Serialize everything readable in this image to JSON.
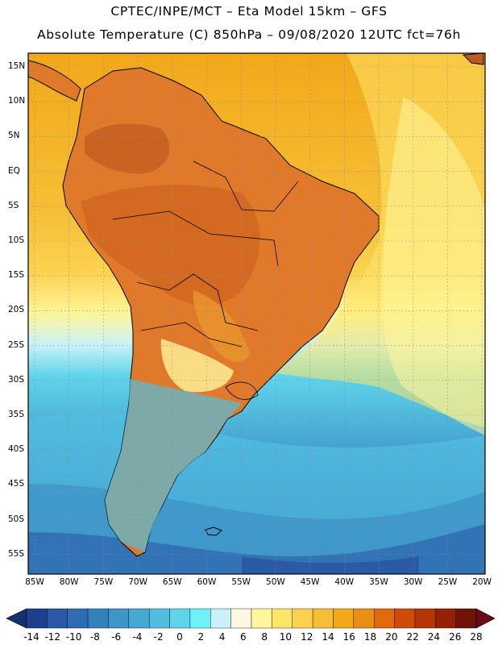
{
  "header": {
    "line1": "CPTEC/INPE/MCT –  Eta Model 15km – GFS",
    "line2": "Absolute Temperature (C) 850hPa – 09/08/2020 12UTC fct=76h"
  },
  "axes": {
    "lat_labels": [
      "15N",
      "10N",
      "5N",
      "EQ",
      "5S",
      "10S",
      "15S",
      "20S",
      "25S",
      "30S",
      "35S",
      "40S",
      "45S",
      "50S",
      "55S"
    ],
    "lon_labels": [
      "85W",
      "80W",
      "75W",
      "70W",
      "65W",
      "60W",
      "55W",
      "50W",
      "45W",
      "40W",
      "35W",
      "30W",
      "25W",
      "20W"
    ]
  },
  "colorbar": {
    "labels": [
      "-14",
      "-12",
      "-10",
      "-8",
      "-6",
      "-4",
      "-2",
      "0",
      "2",
      "4",
      "6",
      "8",
      "10",
      "12",
      "14",
      "16",
      "18",
      "20",
      "22",
      "24",
      "26",
      "28"
    ],
    "colors": [
      "#1d3f8e",
      "#2a58a4",
      "#2f6cb2",
      "#3480bd",
      "#3f94c8",
      "#48a8d4",
      "#52bde0",
      "#5fd4ea",
      "#6ef2f6",
      "#c8f2f8",
      "#fff7e0",
      "#fff59a",
      "#fde56a",
      "#fbd24f",
      "#f6be35",
      "#f2a81a",
      "#eb8f14",
      "#e06a0c",
      "#cf4c08",
      "#b43506",
      "#962206",
      "#6e1508"
    ]
  },
  "map": {
    "land_color": "#d98a3a",
    "ocean_warm": "#f3ad1c",
    "ocean_cold": "#3a8fc8"
  }
}
